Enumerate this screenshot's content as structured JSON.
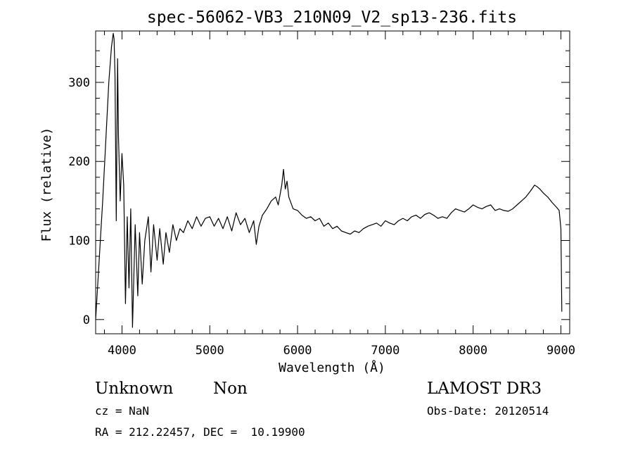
{
  "chart_data": {
    "type": "line",
    "title": "spec-56062-VB3_210N09_V2_sp13-236.fits",
    "xlabel": "Wavelength (Å)",
    "ylabel": "Flux (relative)",
    "xlim": [
      3700,
      9100
    ],
    "ylim": [
      -18,
      365
    ],
    "xticks": [
      4000,
      5000,
      6000,
      7000,
      8000,
      9000
    ],
    "yticks": [
      0,
      100,
      200,
      300
    ],
    "x": [
      3700,
      3780,
      3850,
      3880,
      3900,
      3910,
      3920,
      3935,
      3950,
      3960,
      3980,
      4000,
      4020,
      4040,
      4060,
      4080,
      4100,
      4120,
      4150,
      4180,
      4200,
      4230,
      4260,
      4300,
      4330,
      4360,
      4400,
      4430,
      4470,
      4500,
      4540,
      4580,
      4620,
      4660,
      4700,
      4750,
      4800,
      4850,
      4900,
      4950,
      5000,
      5050,
      5100,
      5150,
      5200,
      5250,
      5300,
      5350,
      5400,
      5450,
      5500,
      5530,
      5560,
      5600,
      5650,
      5700,
      5750,
      5780,
      5820,
      5840,
      5860,
      5880,
      5900,
      5950,
      6000,
      6050,
      6100,
      6150,
      6200,
      6250,
      6300,
      6350,
      6400,
      6450,
      6500,
      6550,
      6600,
      6650,
      6700,
      6750,
      6800,
      6850,
      6900,
      6950,
      7000,
      7050,
      7100,
      7150,
      7200,
      7250,
      7300,
      7350,
      7400,
      7450,
      7500,
      7550,
      7600,
      7650,
      7700,
      7750,
      7800,
      7850,
      7900,
      7950,
      8000,
      8050,
      8100,
      8150,
      8200,
      8250,
      8300,
      8350,
      8400,
      8450,
      8500,
      8550,
      8600,
      8650,
      8700,
      8730,
      8760,
      8800,
      8850,
      8900,
      8950,
      8980,
      9000,
      9010
    ],
    "y": [
      0,
      150,
      300,
      345,
      362,
      355,
      310,
      125,
      330,
      230,
      150,
      210,
      170,
      20,
      130,
      40,
      140,
      -10,
      120,
      30,
      110,
      45,
      100,
      130,
      60,
      120,
      75,
      115,
      70,
      110,
      85,
      120,
      100,
      115,
      110,
      125,
      115,
      130,
      118,
      128,
      130,
      118,
      128,
      115,
      130,
      112,
      135,
      120,
      128,
      110,
      125,
      95,
      118,
      132,
      140,
      150,
      155,
      145,
      170,
      190,
      165,
      175,
      155,
      140,
      138,
      132,
      128,
      130,
      125,
      128,
      118,
      122,
      115,
      118,
      112,
      110,
      108,
      112,
      110,
      115,
      118,
      120,
      122,
      118,
      125,
      122,
      120,
      125,
      128,
      125,
      130,
      132,
      128,
      133,
      135,
      132,
      128,
      130,
      128,
      135,
      140,
      138,
      136,
      140,
      145,
      142,
      140,
      143,
      145,
      138,
      140,
      138,
      137,
      140,
      145,
      150,
      155,
      162,
      170,
      168,
      165,
      160,
      155,
      148,
      142,
      138,
      115,
      10
    ]
  },
  "footer": {
    "object_class": "Unknown",
    "subclass": "Non",
    "survey": "LAMOST DR3",
    "cz": "cz = NaN",
    "obs_date": "Obs-Date: 20120514",
    "coords": "RA = 212.22457, DEC =  10.19900"
  }
}
